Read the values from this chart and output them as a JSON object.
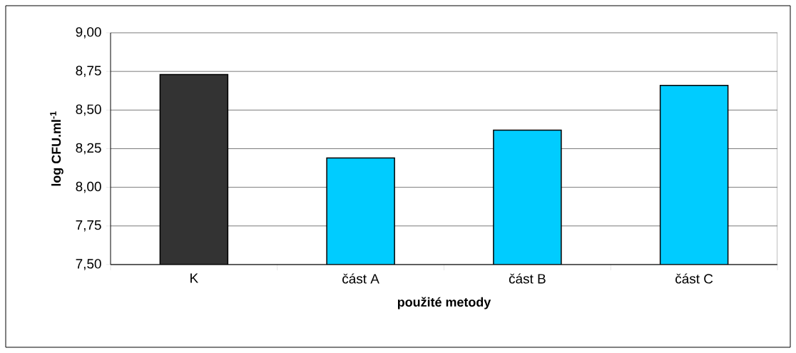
{
  "chart_data": {
    "type": "bar",
    "xlabel": "použité metody",
    "ylabel": "**log CFU.ml$^{-1}$**",
    "categories": [
      "K",
      "část A",
      "část B",
      "část C"
    ],
    "values": [
      8.73,
      8.19,
      8.37,
      8.66
    ],
    "colors": [
      "#333333",
      "#00ccff",
      "#00ccff",
      "#00ccff"
    ],
    "ylim": [
      7.5,
      9.0
    ],
    "yticks": [
      {
        "value": 7.5,
        "label": "7,50"
      },
      {
        "value": 7.75,
        "label": "7,75"
      },
      {
        "value": 8.0,
        "label": "8,00"
      },
      {
        "value": 8.25,
        "label": "8,25"
      },
      {
        "value": 8.5,
        "label": "8,50"
      },
      {
        "value": 8.75,
        "label": "8,75"
      },
      {
        "value": 9.0,
        "label": "9,00"
      }
    ],
    "grid": "y"
  }
}
